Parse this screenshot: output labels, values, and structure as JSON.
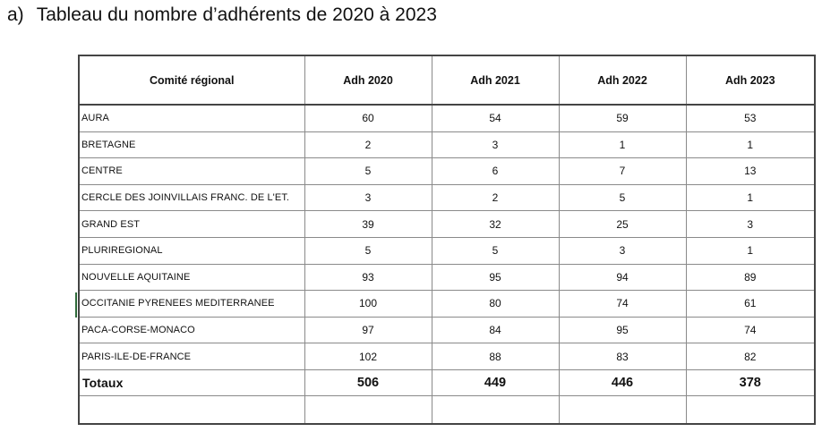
{
  "heading": {
    "marker": "a)",
    "text": "Tableau du nombre d’adhérents de 2020 à 2023"
  },
  "table": {
    "columns": [
      "Comité régional",
      "Adh 2020",
      "Adh 2021",
      "Adh 2022",
      "Adh 2023"
    ],
    "rows": [
      {
        "name": "AURA",
        "v2020": "60",
        "v2021": "54",
        "v2022": "59",
        "v2023": "53"
      },
      {
        "name": "BRETAGNE",
        "v2020": "2",
        "v2021": "3",
        "v2022": "1",
        "v2023": "1"
      },
      {
        "name": "CENTRE",
        "v2020": "5",
        "v2021": "6",
        "v2022": "7",
        "v2023": "13"
      },
      {
        "name": "CERCLE DES JOINVILLAIS FRANC. DE L'ET.",
        "v2020": "3",
        "v2021": "2",
        "v2022": "5",
        "v2023": "1"
      },
      {
        "name": "GRAND EST",
        "v2020": "39",
        "v2021": "32",
        "v2022": "25",
        "v2023": "3"
      },
      {
        "name": "PLURIREGIONAL",
        "v2020": "5",
        "v2021": "5",
        "v2022": "3",
        "v2023": "1"
      },
      {
        "name": "NOUVELLE AQUITAINE",
        "v2020": "93",
        "v2021": "95",
        "v2022": "94",
        "v2023": "89"
      },
      {
        "name": "OCCITANIE PYRENEES MEDITERRANEE",
        "v2020": "100",
        "v2021": "80",
        "v2022": "74",
        "v2023": "61"
      },
      {
        "name": "PACA-CORSE-MONACO",
        "v2020": "97",
        "v2021": "84",
        "v2022": "95",
        "v2023": "74"
      },
      {
        "name": "PARIS-ILE-DE-FRANCE",
        "v2020": "102",
        "v2021": "88",
        "v2022": "83",
        "v2023": "82"
      }
    ],
    "totals": {
      "label": "Totaux",
      "v2020": "506",
      "v2021": "449",
      "v2022": "446",
      "v2023": "378"
    }
  }
}
